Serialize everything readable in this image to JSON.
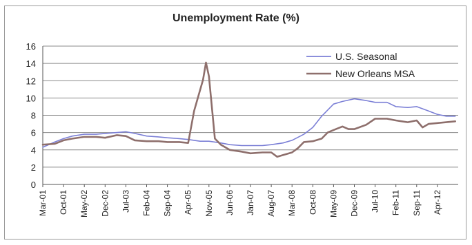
{
  "chart_data": {
    "type": "line",
    "title": "Unemployment Rate (%)",
    "xlabel": "",
    "ylabel": "",
    "ylim": [
      0,
      16
    ],
    "y_ticks": [
      0,
      2,
      4,
      6,
      8,
      10,
      12,
      14,
      16
    ],
    "grid": "horizontal",
    "legend_position": "top-right",
    "x_tick_labels": [
      "Mar-01",
      "Oct-01",
      "May-02",
      "Dec-02",
      "Jul-03",
      "Feb-04",
      "Sep-04",
      "Apr-05",
      "Nov-05",
      "Jun-06",
      "Jan-07",
      "Aug-07",
      "Mar-08",
      "Oct-08",
      "May-09",
      "Dec-09",
      "Jul-10",
      "Feb-11",
      "Sep-11",
      "Apr-12"
    ],
    "x_tick_months": [
      0,
      7,
      14,
      21,
      28,
      35,
      42,
      49,
      56,
      63,
      70,
      77,
      84,
      91,
      98,
      105,
      112,
      119,
      126,
      133
    ],
    "series": [
      {
        "name": "U.S. Seasonal",
        "color": "#7b7fd6",
        "points": [
          [
            0,
            4.3
          ],
          [
            4,
            4.9
          ],
          [
            7,
            5.3
          ],
          [
            10,
            5.6
          ],
          [
            14,
            5.8
          ],
          [
            18,
            5.8
          ],
          [
            21,
            5.9
          ],
          [
            25,
            6.0
          ],
          [
            28,
            6.1
          ],
          [
            31,
            5.9
          ],
          [
            35,
            5.6
          ],
          [
            39,
            5.5
          ],
          [
            42,
            5.4
          ],
          [
            46,
            5.3
          ],
          [
            49,
            5.2
          ],
          [
            53,
            5.0
          ],
          [
            56,
            5.0
          ],
          [
            58,
            4.9
          ],
          [
            60,
            4.8
          ],
          [
            63,
            4.6
          ],
          [
            67,
            4.5
          ],
          [
            70,
            4.5
          ],
          [
            74,
            4.5
          ],
          [
            77,
            4.6
          ],
          [
            81,
            4.8
          ],
          [
            84,
            5.1
          ],
          [
            88,
            5.8
          ],
          [
            91,
            6.6
          ],
          [
            94,
            7.9
          ],
          [
            98,
            9.3
          ],
          [
            101,
            9.6
          ],
          [
            105,
            9.9
          ],
          [
            109,
            9.7
          ],
          [
            112,
            9.5
          ],
          [
            116,
            9.5
          ],
          [
            119,
            9.0
          ],
          [
            123,
            8.9
          ],
          [
            126,
            9.0
          ],
          [
            130,
            8.5
          ],
          [
            133,
            8.1
          ],
          [
            136,
            7.9
          ],
          [
            139,
            7.9
          ]
        ]
      },
      {
        "name": "New Orleans MSA",
        "color": "#8e6f6c",
        "points": [
          [
            0,
            4.6
          ],
          [
            4,
            4.7
          ],
          [
            7,
            5.1
          ],
          [
            10,
            5.3
          ],
          [
            14,
            5.5
          ],
          [
            18,
            5.5
          ],
          [
            21,
            5.4
          ],
          [
            25,
            5.7
          ],
          [
            28,
            5.6
          ],
          [
            31,
            5.1
          ],
          [
            35,
            5.0
          ],
          [
            39,
            5.0
          ],
          [
            42,
            4.9
          ],
          [
            46,
            4.9
          ],
          [
            49,
            4.8
          ],
          [
            51,
            8.5
          ],
          [
            54,
            12.1
          ],
          [
            55,
            14.1
          ],
          [
            56,
            12.5
          ],
          [
            58,
            5.3
          ],
          [
            60,
            4.6
          ],
          [
            63,
            4.0
          ],
          [
            67,
            3.8
          ],
          [
            70,
            3.6
          ],
          [
            74,
            3.7
          ],
          [
            77,
            3.7
          ],
          [
            79,
            3.2
          ],
          [
            81,
            3.4
          ],
          [
            84,
            3.7
          ],
          [
            86,
            4.2
          ],
          [
            88,
            4.9
          ],
          [
            91,
            5.0
          ],
          [
            94,
            5.3
          ],
          [
            96,
            6.0
          ],
          [
            98,
            6.3
          ],
          [
            101,
            6.7
          ],
          [
            103,
            6.4
          ],
          [
            105,
            6.4
          ],
          [
            109,
            6.9
          ],
          [
            112,
            7.6
          ],
          [
            116,
            7.6
          ],
          [
            119,
            7.4
          ],
          [
            121,
            7.3
          ],
          [
            123,
            7.2
          ],
          [
            126,
            7.4
          ],
          [
            128,
            6.6
          ],
          [
            130,
            7.0
          ],
          [
            133,
            7.1
          ],
          [
            136,
            7.2
          ],
          [
            139,
            7.3
          ]
        ]
      }
    ]
  }
}
